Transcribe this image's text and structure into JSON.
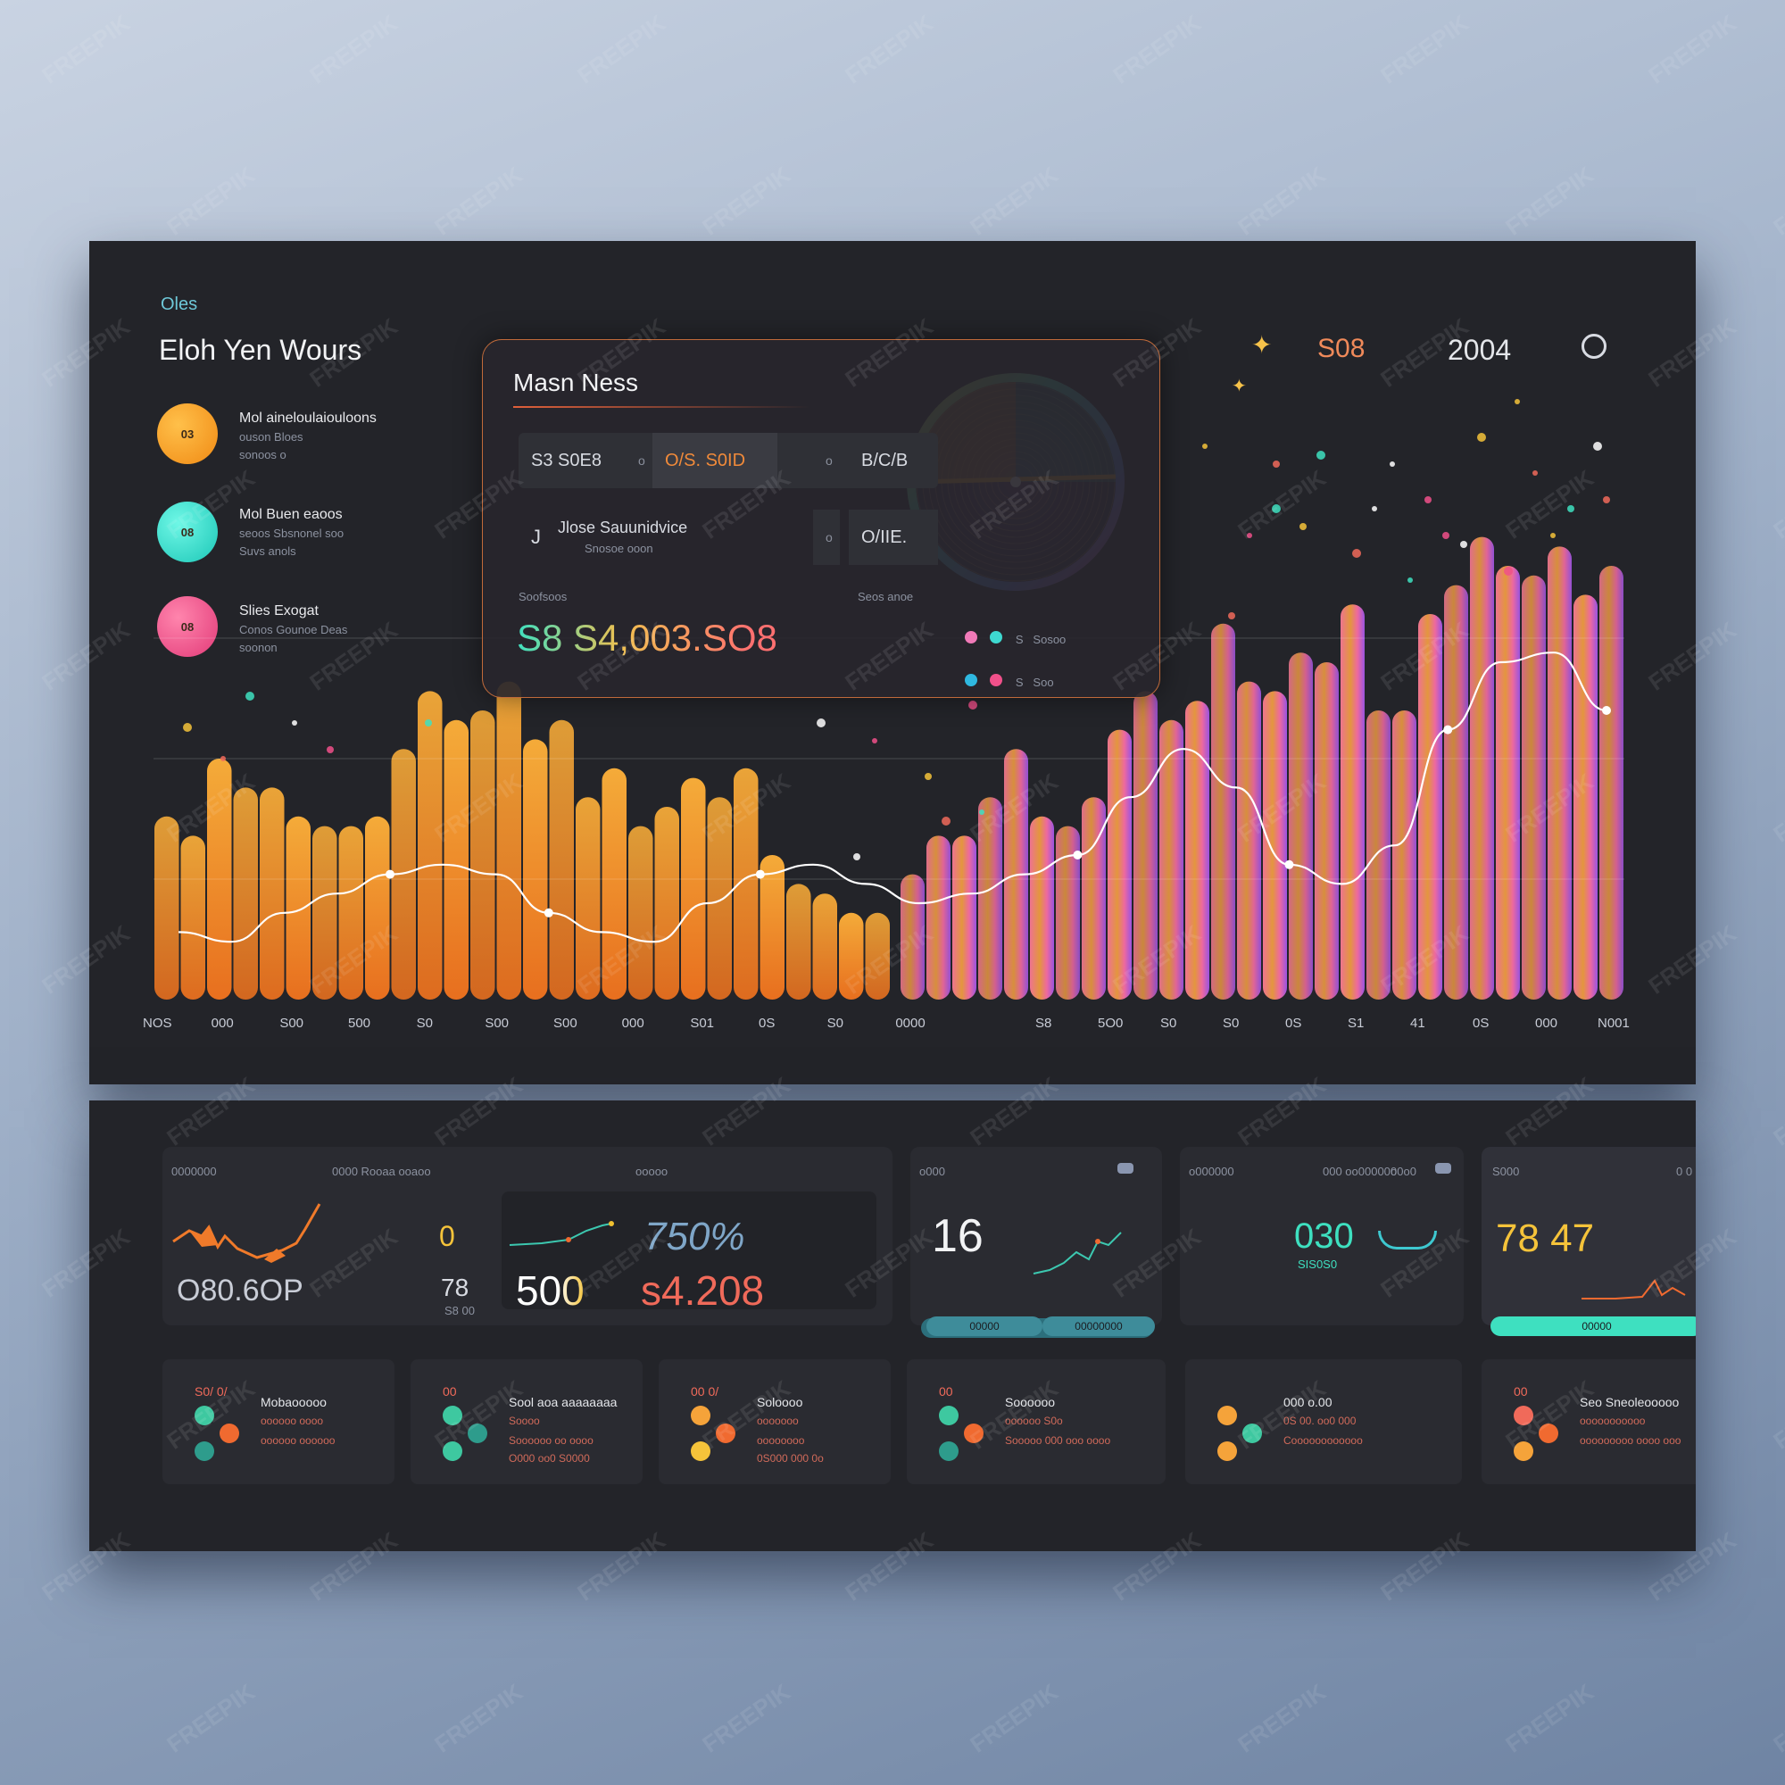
{
  "header": {
    "small_label": "Oles",
    "title": "Eloh Yen Wours",
    "top_value_1": "S08",
    "top_value_2": "2004"
  },
  "legend": [
    {
      "badge": "03",
      "line1": "Mol aineloulaiouloons",
      "line2": "ouson Bloes",
      "line3": "sonoos o",
      "color": "#f7a623"
    },
    {
      "badge": "08",
      "line1": "Mol Buen eaoos",
      "line2": "seoos Sbsnonel soo",
      "line3": "Suvs anols",
      "color": "#2ee8d0"
    },
    {
      "badge": "08",
      "line1": "Slies Exogat",
      "line2": "Conos Gounoe Deas",
      "line3": "soonon",
      "color": "#f0508a"
    }
  ],
  "card": {
    "title": "Masn Ness",
    "row1": [
      "S3 S0E8",
      "o",
      "O/S. S0ID",
      "o",
      "B/C/B"
    ],
    "row2": [
      "J",
      "Jlose Sauunidvice",
      "Snosoe ooon",
      "o",
      "O/IIE."
    ],
    "label_left": "Soofsoos",
    "label_right": "Seos anoe",
    "big_value": "S8 S4,003.SO8",
    "legend_row1": "S   Sosoo",
    "legend_row2": "S   Soo"
  },
  "x_axis_labels_left": [
    "NOS",
    "000",
    "S00",
    "500",
    "S0",
    "S00",
    "S00",
    "000",
    "S01",
    "0S",
    "S0",
    "0000"
  ],
  "x_axis_labels_right": [
    "S8",
    "5O0",
    "S0",
    "S0",
    "0S",
    "S1",
    "41",
    "0S",
    "000",
    "N001"
  ],
  "chart_data": {
    "type": "bar",
    "title": "",
    "xlabel": "",
    "ylabel": "",
    "ylim": [
      0,
      100
    ],
    "categories_left": [
      "NOS",
      "000",
      "S00",
      "500",
      "S0",
      "S00",
      "S00",
      "000",
      "S01",
      "0S",
      "S0",
      "0000"
    ],
    "categories_right": [
      "S8",
      "5O0",
      "S0",
      "S0",
      "0S",
      "S1",
      "41",
      "0S",
      "000",
      "N001"
    ],
    "series": [
      {
        "values": [
          38,
          34,
          50,
          44,
          44,
          38,
          36,
          36,
          38,
          52,
          64,
          58,
          60,
          66,
          54,
          58,
          42,
          48,
          36,
          40,
          46,
          42,
          48,
          30,
          24,
          22,
          18,
          18
        ]
      },
      {
        "values": [
          26,
          34,
          34,
          42,
          52,
          38,
          36,
          42,
          56,
          64,
          58,
          62,
          78,
          66,
          64,
          72,
          70,
          82,
          60,
          60,
          80,
          86,
          96,
          90,
          88,
          94,
          84,
          90
        ]
      }
    ],
    "line": [
      14,
      12,
      18,
      22,
      26,
      28,
      26,
      18,
      14,
      12,
      20,
      26,
      28,
      24,
      20,
      22,
      26,
      30,
      42,
      52,
      44,
      28,
      24,
      32,
      56,
      70,
      72,
      60
    ]
  },
  "bottom": {
    "tile1": {
      "h1": "0000000",
      "h2": "0000 Rooaa ooaoo",
      "h3": "ooooo"
    },
    "tile2": {
      "h1": "o000",
      "toggle": ""
    },
    "tile3": {
      "h1": "o000000",
      "h2": "000 oo000000",
      "h3": "o0o0"
    },
    "tile4": {
      "h1": "S000",
      "h2": "0 0"
    },
    "values": {
      "v1": "O80.6OP",
      "v2": "0",
      "v3": "78",
      "v3b": "S8 00",
      "v4": "750%",
      "v5": "500",
      "v6": "s4.208",
      "v7": "16",
      "v8": "030",
      "v8b": "SIS0S0",
      "v9": "78 47",
      "pill1a": "00000",
      "pill1b": "00000000",
      "pill2": "00000"
    },
    "mini": [
      {
        "h": "S0/ 0/",
        "l1": "Mobaooooo",
        "l2": "oooooo oooo",
        "l3": "oooooo oooooo"
      },
      {
        "h": "00",
        "l1": "Sool aoa aaaaaaaa",
        "l2": "Soooo",
        "l3": "Soooooo oo oooo",
        "l4": "O000 oo0 S0000"
      },
      {
        "h": "00 0/",
        "l1": "Soloooo",
        "l2": "ooooooo",
        "l3": "oooooooo",
        "l4": "0S000 000 0o"
      },
      {
        "h": "00",
        "l1": "Soooooo",
        "l2": "oooooo S0o",
        "l3": "Sooooo 000 ooo oooo"
      },
      {
        "l1": "000 o.00",
        "l2": "0S 00. oo0 000",
        "l3": "Coooooooooooo"
      },
      {
        "h": "00",
        "l1": "Seo Sneoleooooo",
        "l2": "ooooooooooo",
        "l3": "ooooooooo oooo ooo"
      }
    ]
  },
  "watermark": "FREEPIK"
}
